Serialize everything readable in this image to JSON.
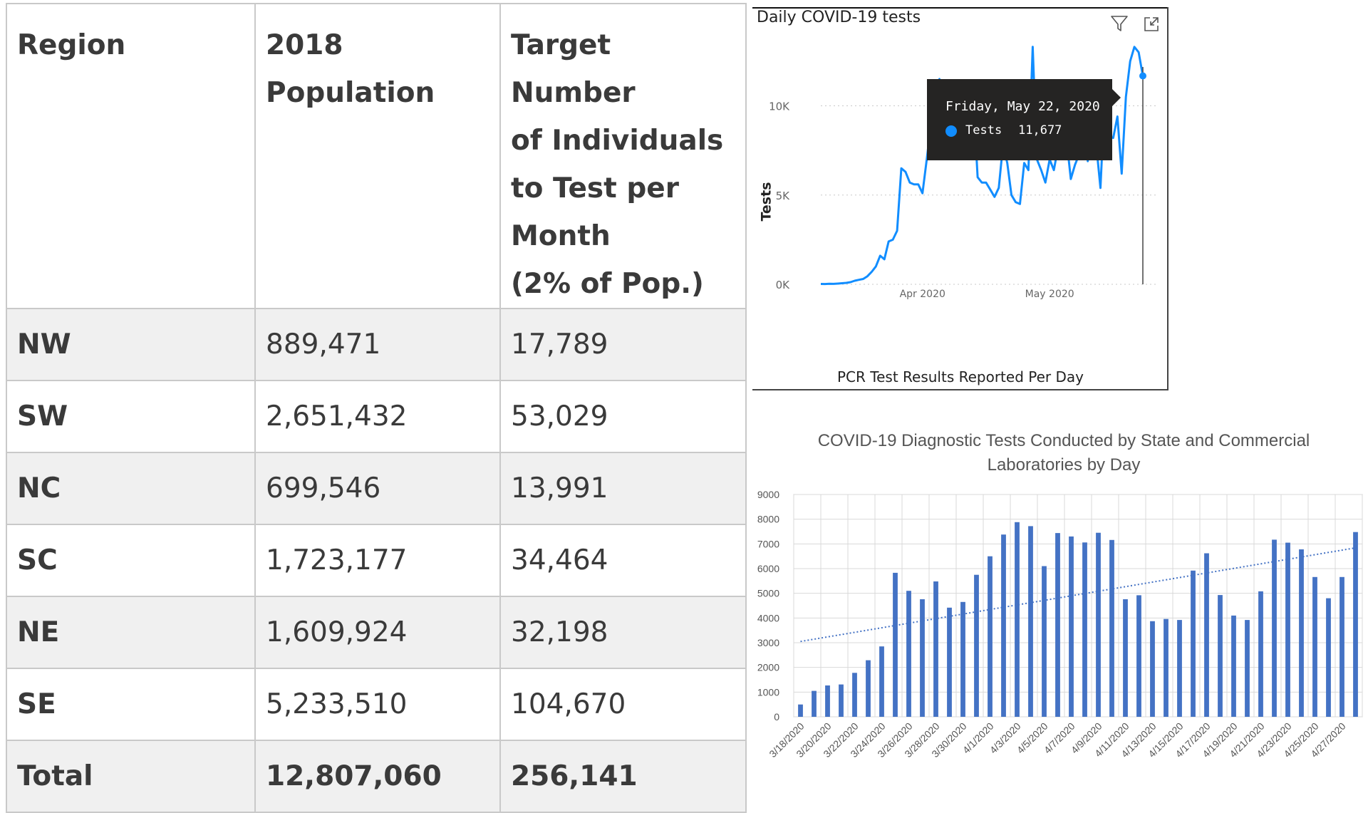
{
  "table": {
    "headers": [
      "Region",
      "2018 Population",
      "Target Number of Individuals to Test per Month (2% of Pop.)"
    ],
    "header_lines": [
      [
        "Region"
      ],
      [
        "2018",
        "Population"
      ],
      [
        "Target Number",
        "of Individuals",
        "to Test per",
        "Month",
        "(2% of Pop.)"
      ]
    ],
    "rows": [
      {
        "region": "NW",
        "population": "889,471",
        "target": "17,789"
      },
      {
        "region": "SW",
        "population": "2,651,432",
        "target": "53,029"
      },
      {
        "region": "NC",
        "population": "699,546",
        "target": "13,991"
      },
      {
        "region": "SC",
        "population": "1,723,177",
        "target": "34,464"
      },
      {
        "region": "NE",
        "population": "1,609,924",
        "target": "32,198"
      },
      {
        "region": "SE",
        "population": "5,233,510",
        "target": "104,670"
      },
      {
        "region": "Total",
        "population": "12,807,060",
        "target": "256,141"
      }
    ]
  },
  "line_chart": {
    "title": "Daily COVID-19 tests",
    "tooltip": {
      "date": "Friday, May 22, 2020",
      "series": "Tests",
      "value": "11,677"
    }
  },
  "chart_data": [
    {
      "type": "line",
      "title": "Daily COVID-19 tests",
      "xlabel": "PCR Test Results Reported Per Day",
      "ylabel": "Tests",
      "x_start": "2020-03-08",
      "x_end": "2020-05-22",
      "x_ticks": [
        "Apr 2020",
        "May 2020"
      ],
      "y_ticks": [
        "0K",
        "5K",
        "10K"
      ],
      "ylim": [
        0,
        13500
      ],
      "grid": true,
      "color": "#118DFF",
      "series": [
        {
          "name": "Tests",
          "values": [
            20,
            15,
            30,
            25,
            40,
            60,
            80,
            120,
            200,
            250,
            300,
            450,
            700,
            1000,
            1600,
            1400,
            2400,
            2500,
            3000,
            6500,
            6300,
            5700,
            5600,
            5600,
            5100,
            7000,
            9000,
            9800,
            11500,
            9400,
            7700,
            8300,
            9500,
            9000,
            9200,
            10500,
            10400,
            6000,
            5700,
            5700,
            5300,
            4900,
            5400,
            7800,
            6800,
            5000,
            4600,
            4500,
            6800,
            6400,
            13300,
            7000,
            6400,
            5700,
            7000,
            6400,
            7700,
            7600,
            8100,
            5900,
            6700,
            7300,
            8800,
            6900,
            8700,
            7800,
            5400,
            10500,
            8300,
            8200,
            9400,
            6200,
            10500,
            12500,
            13300,
            13000,
            11677
          ]
        }
      ]
    },
    {
      "type": "bar",
      "title": "COVID-19 Diagnostic Tests Conducted by State and Commercial Laboratories by Day",
      "x_labels": [
        "3/18/2020",
        "3/20/2020",
        "3/22/2020",
        "3/24/2020",
        "3/26/2020",
        "3/28/2020",
        "3/30/2020",
        "4/1/2020",
        "4/3/2020",
        "4/5/2020",
        "4/7/2020",
        "4/9/2020",
        "4/11/2020",
        "4/13/2020",
        "4/15/2020",
        "4/17/2020",
        "4/19/2020",
        "4/21/2020",
        "4/23/2020",
        "4/25/2020",
        "4/27/2020"
      ],
      "categories": [
        "3/18/2020",
        "3/19/2020",
        "3/20/2020",
        "3/21/2020",
        "3/22/2020",
        "3/23/2020",
        "3/24/2020",
        "3/25/2020",
        "3/26/2020",
        "3/27/2020",
        "3/28/2020",
        "3/29/2020",
        "3/30/2020",
        "3/31/2020",
        "4/1/2020",
        "4/2/2020",
        "4/3/2020",
        "4/4/2020",
        "4/5/2020",
        "4/6/2020",
        "4/7/2020",
        "4/8/2020",
        "4/9/2020",
        "4/10/2020",
        "4/11/2020",
        "4/12/2020",
        "4/13/2020",
        "4/14/2020",
        "4/15/2020",
        "4/16/2020",
        "4/17/2020",
        "4/18/2020",
        "4/19/2020",
        "4/20/2020",
        "4/21/2020",
        "4/22/2020",
        "4/23/2020",
        "4/24/2020",
        "4/25/2020",
        "4/26/2020",
        "4/27/2020",
        "4/28/2020"
      ],
      "values": [
        500,
        1050,
        1270,
        1310,
        1780,
        2290,
        2850,
        5830,
        5100,
        4760,
        5480,
        4420,
        4650,
        5750,
        6500,
        7380,
        7880,
        7720,
        6100,
        7440,
        7300,
        7060,
        7450,
        7160,
        4760,
        4920,
        3870,
        3960,
        3920,
        5920,
        6620,
        4930,
        4100,
        3920,
        5080,
        7170,
        7050,
        6780,
        5660,
        4800,
        5660,
        7480
      ],
      "ylim": [
        0,
        9000
      ],
      "y_ticks": [
        0,
        1000,
        2000,
        3000,
        4000,
        5000,
        6000,
        7000,
        8000,
        9000
      ],
      "trendline": {
        "start": 3050,
        "end": 6840,
        "style": "dotted"
      },
      "grid": true,
      "color": "#4472C4"
    }
  ]
}
